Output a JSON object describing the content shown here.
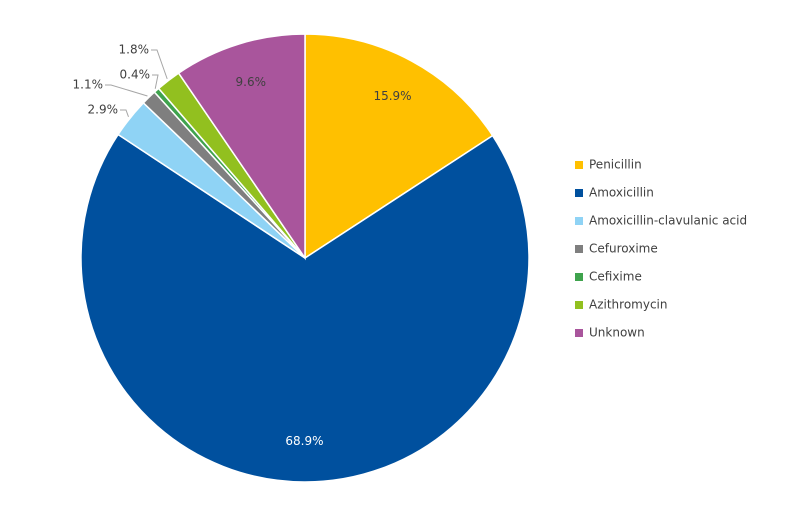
{
  "chart_data": {
    "type": "pie",
    "categories": [
      "Penicillin",
      "Amoxicillin",
      "Amoxicillin-clavulanic acid",
      "Cefuroxime",
      "Cefixime",
      "Azithromycin",
      "Unknown"
    ],
    "values": [
      15.9,
      68.9,
      2.9,
      1.1,
      0.4,
      1.8,
      9.6
    ],
    "value_labels": [
      "15.9%",
      "68.9%",
      "2.9%",
      "1.1%",
      "0.4%",
      "1.8%",
      "9.6%"
    ],
    "colors": [
      "#ffc000",
      "#00509e",
      "#8fd3f5",
      "#7f7f7f",
      "#3fa34d",
      "#92c01f",
      "#a9559c"
    ],
    "legend": "right"
  }
}
